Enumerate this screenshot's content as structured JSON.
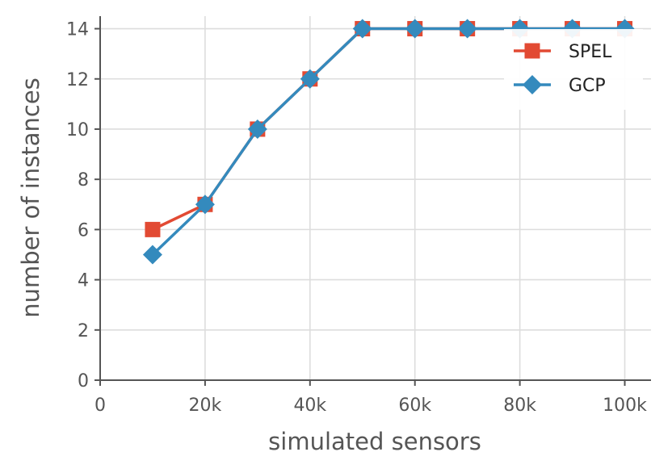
{
  "chart_data": {
    "type": "line",
    "title": "",
    "xlabel": "simulated sensors",
    "ylabel": "number of instances",
    "x": [
      10000,
      20000,
      30000,
      40000,
      50000,
      60000,
      70000,
      80000,
      90000,
      100000
    ],
    "xlim": [
      0,
      105000
    ],
    "ylim": [
      0,
      14.5
    ],
    "xticks": [
      0,
      20000,
      40000,
      60000,
      80000,
      100000
    ],
    "xtick_labels": [
      "0",
      "20k",
      "40k",
      "60k",
      "80k",
      "100k"
    ],
    "yticks": [
      0,
      2,
      4,
      6,
      8,
      10,
      12,
      14
    ],
    "ytick_labels": [
      "0",
      "2",
      "4",
      "6",
      "8",
      "10",
      "12",
      "14"
    ],
    "grid": true,
    "legend_position": "top-right",
    "series": [
      {
        "name": "SPEL",
        "marker": "square",
        "color": "#E24A33",
        "values": [
          6,
          7,
          10,
          12,
          14,
          14,
          14,
          14,
          14,
          14
        ]
      },
      {
        "name": "GCP",
        "marker": "diamond",
        "color": "#348ABD",
        "values": [
          5,
          7,
          10,
          12,
          14,
          14,
          14,
          14,
          14,
          14
        ]
      }
    ]
  }
}
